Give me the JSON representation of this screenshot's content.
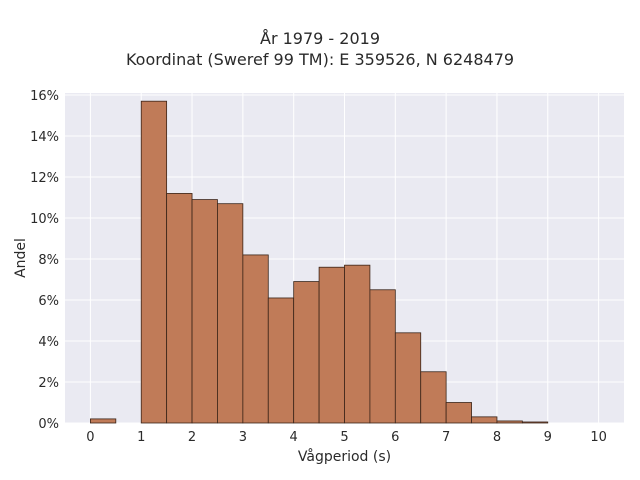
{
  "chart_data": {
    "type": "bar",
    "title_line1": "År 1979 - 2019",
    "title_line2": "Koordinat (Sweref 99 TM): E 359526, N 6248479",
    "xlabel": "Vågperiod (s)",
    "ylabel": "Andel",
    "xlim": [
      -0.5,
      10.5
    ],
    "ylim": [
      0,
      0.161
    ],
    "x_ticks": [
      0,
      1,
      2,
      3,
      4,
      5,
      6,
      7,
      8,
      9,
      10
    ],
    "x_tick_labels": [
      "0",
      "1",
      "2",
      "3",
      "4",
      "5",
      "6",
      "7",
      "8",
      "9",
      "10"
    ],
    "y_ticks": [
      0,
      0.02,
      0.04,
      0.06,
      0.08,
      0.1,
      0.12,
      0.14,
      0.16
    ],
    "y_tick_labels": [
      "0%",
      "2%",
      "4%",
      "6%",
      "8%",
      "10%",
      "12%",
      "14%",
      "16%"
    ],
    "bin_width": 0.5,
    "bin_starts": [
      0,
      0.5,
      1,
      1.5,
      2,
      2.5,
      3,
      3.5,
      4,
      4.5,
      5,
      5.5,
      6,
      6.5,
      7,
      7.5,
      8,
      8.5,
      9,
      9.5
    ],
    "values": [
      0.002,
      0,
      0.157,
      0.112,
      0.109,
      0.107,
      0.082,
      0.061,
      0.069,
      0.076,
      0.077,
      0.065,
      0.044,
      0.025,
      0.01,
      0.003,
      0.001,
      0.0005,
      0,
      0
    ],
    "grid": true,
    "colors": {
      "bar_fill": "#c07b58",
      "bar_edge": "#3a2418",
      "plot_background": "#eaeaf2",
      "grid": "#ffffff"
    }
  }
}
